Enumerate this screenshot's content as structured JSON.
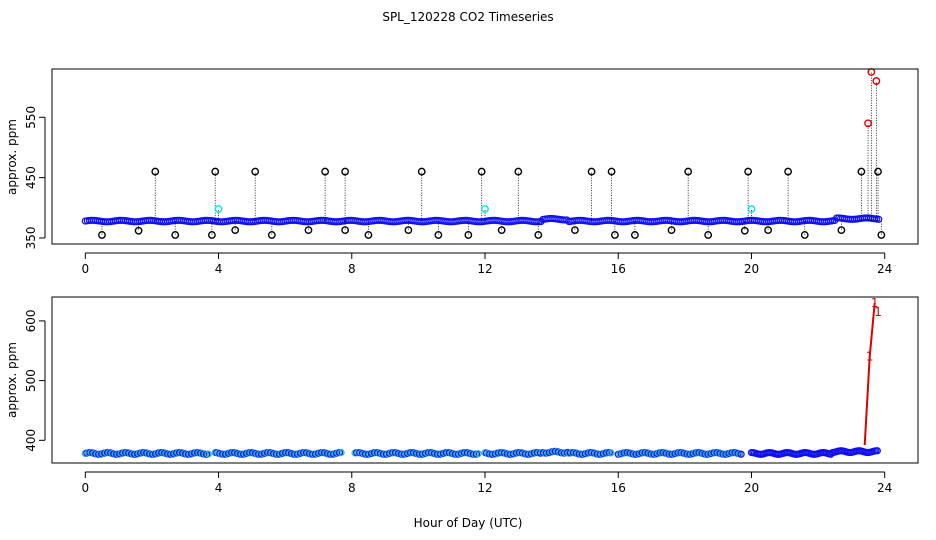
{
  "chart_data": {
    "title": "SPL_120228  CO2 Timeseries",
    "xlabel": "Hour of Day (UTC)",
    "panels": [
      {
        "name": "top",
        "type": "scatter",
        "ylabel": "approx. ppm",
        "xlim": [
          -1,
          25
        ],
        "ylim": [
          340,
          630
        ],
        "xticks": [
          0,
          4,
          8,
          12,
          16,
          20,
          24
        ],
        "xtick_labels": [
          "0",
          "4",
          "8",
          "12",
          "16",
          "20",
          "24"
        ],
        "yticks": [
          350,
          450,
          550
        ],
        "ytick_labels": [
          "350",
          "450",
          "550"
        ],
        "baseline": 378,
        "series": [
          {
            "name": "spikes-black",
            "color": "#000000",
            "points": [
              [
                2.1,
                460
              ],
              [
                3.9,
                460
              ],
              [
                5.1,
                460
              ],
              [
                7.2,
                460
              ],
              [
                7.8,
                460
              ],
              [
                10.1,
                460
              ],
              [
                11.9,
                460
              ],
              [
                13.0,
                460
              ],
              [
                15.2,
                460
              ],
              [
                15.8,
                460
              ],
              [
                18.1,
                460
              ],
              [
                19.9,
                460
              ],
              [
                21.1,
                460
              ],
              [
                23.3,
                460
              ],
              [
                23.8,
                460
              ],
              [
                0.5,
                355
              ],
              [
                1.6,
                362
              ],
              [
                2.7,
                355
              ],
              [
                3.8,
                355
              ],
              [
                4.5,
                363
              ],
              [
                5.6,
                355
              ],
              [
                6.7,
                363
              ],
              [
                7.8,
                363
              ],
              [
                8.5,
                355
              ],
              [
                9.7,
                363
              ],
              [
                10.6,
                355
              ],
              [
                11.5,
                355
              ],
              [
                12.5,
                363
              ],
              [
                13.6,
                355
              ],
              [
                14.7,
                363
              ],
              [
                15.9,
                355
              ],
              [
                16.5,
                355
              ],
              [
                17.6,
                363
              ],
              [
                18.7,
                355
              ],
              [
                19.8,
                362
              ],
              [
                20.5,
                363
              ],
              [
                21.6,
                355
              ],
              [
                22.7,
                363
              ],
              [
                23.9,
                355
              ]
            ]
          },
          {
            "name": "spikes-cyan",
            "color": "#00e5ee",
            "points": [
              [
                4.0,
                398
              ],
              [
                12.0,
                398
              ],
              [
                20.0,
                398
              ]
            ]
          },
          {
            "name": "spikes-red",
            "color": "#dd0000",
            "points": [
              [
                23.5,
                540
              ],
              [
                23.6,
                625
              ],
              [
                23.75,
                610
              ]
            ]
          }
        ]
      },
      {
        "name": "bottom",
        "type": "line",
        "ylabel": "approx. ppm",
        "xlim": [
          -1,
          25
        ],
        "ylim": [
          362,
          640
        ],
        "xticks": [
          0,
          4,
          8,
          12,
          16,
          20,
          24
        ],
        "xtick_labels": [
          "0",
          "4",
          "8",
          "12",
          "16",
          "20",
          "24"
        ],
        "yticks": [
          400,
          500,
          600
        ],
        "ytick_labels": [
          "400",
          "500",
          "600"
        ],
        "segments": [
          [
            0,
            3.7
          ],
          [
            3.9,
            7.7
          ],
          [
            8.1,
            11.8
          ],
          [
            12.0,
            15.8
          ],
          [
            16.0,
            19.7
          ],
          [
            20.0,
            23.8
          ]
        ],
        "baseline": 378,
        "markers": [
          {
            "x": 23.55,
            "y": 540,
            "label": "1"
          },
          {
            "x": 23.7,
            "y": 630,
            "label": "1"
          },
          {
            "x": 23.8,
            "y": 615,
            "label": "1"
          }
        ],
        "rise_line": [
          [
            23.4,
            392
          ],
          [
            23.55,
            540
          ],
          [
            23.7,
            630
          ]
        ]
      }
    ]
  }
}
